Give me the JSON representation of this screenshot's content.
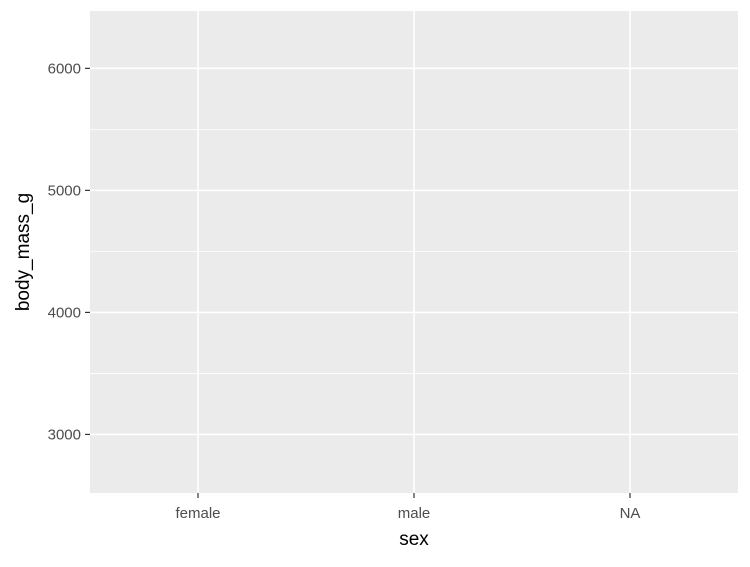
{
  "chart_data": {
    "type": "scatter",
    "title": "",
    "xlabel": "sex",
    "ylabel": "body_mass_g",
    "categories": [
      "female",
      "male",
      "NA"
    ],
    "yticks": [
      3000,
      4000,
      5000,
      6000
    ],
    "ylim": [
      2520,
      6470
    ],
    "grid": true,
    "series": [],
    "colors": {
      "panel": "#ebebeb",
      "grid": "#ffffff",
      "tick_text": "#4d4d4d",
      "axis_title": "#000000"
    }
  }
}
